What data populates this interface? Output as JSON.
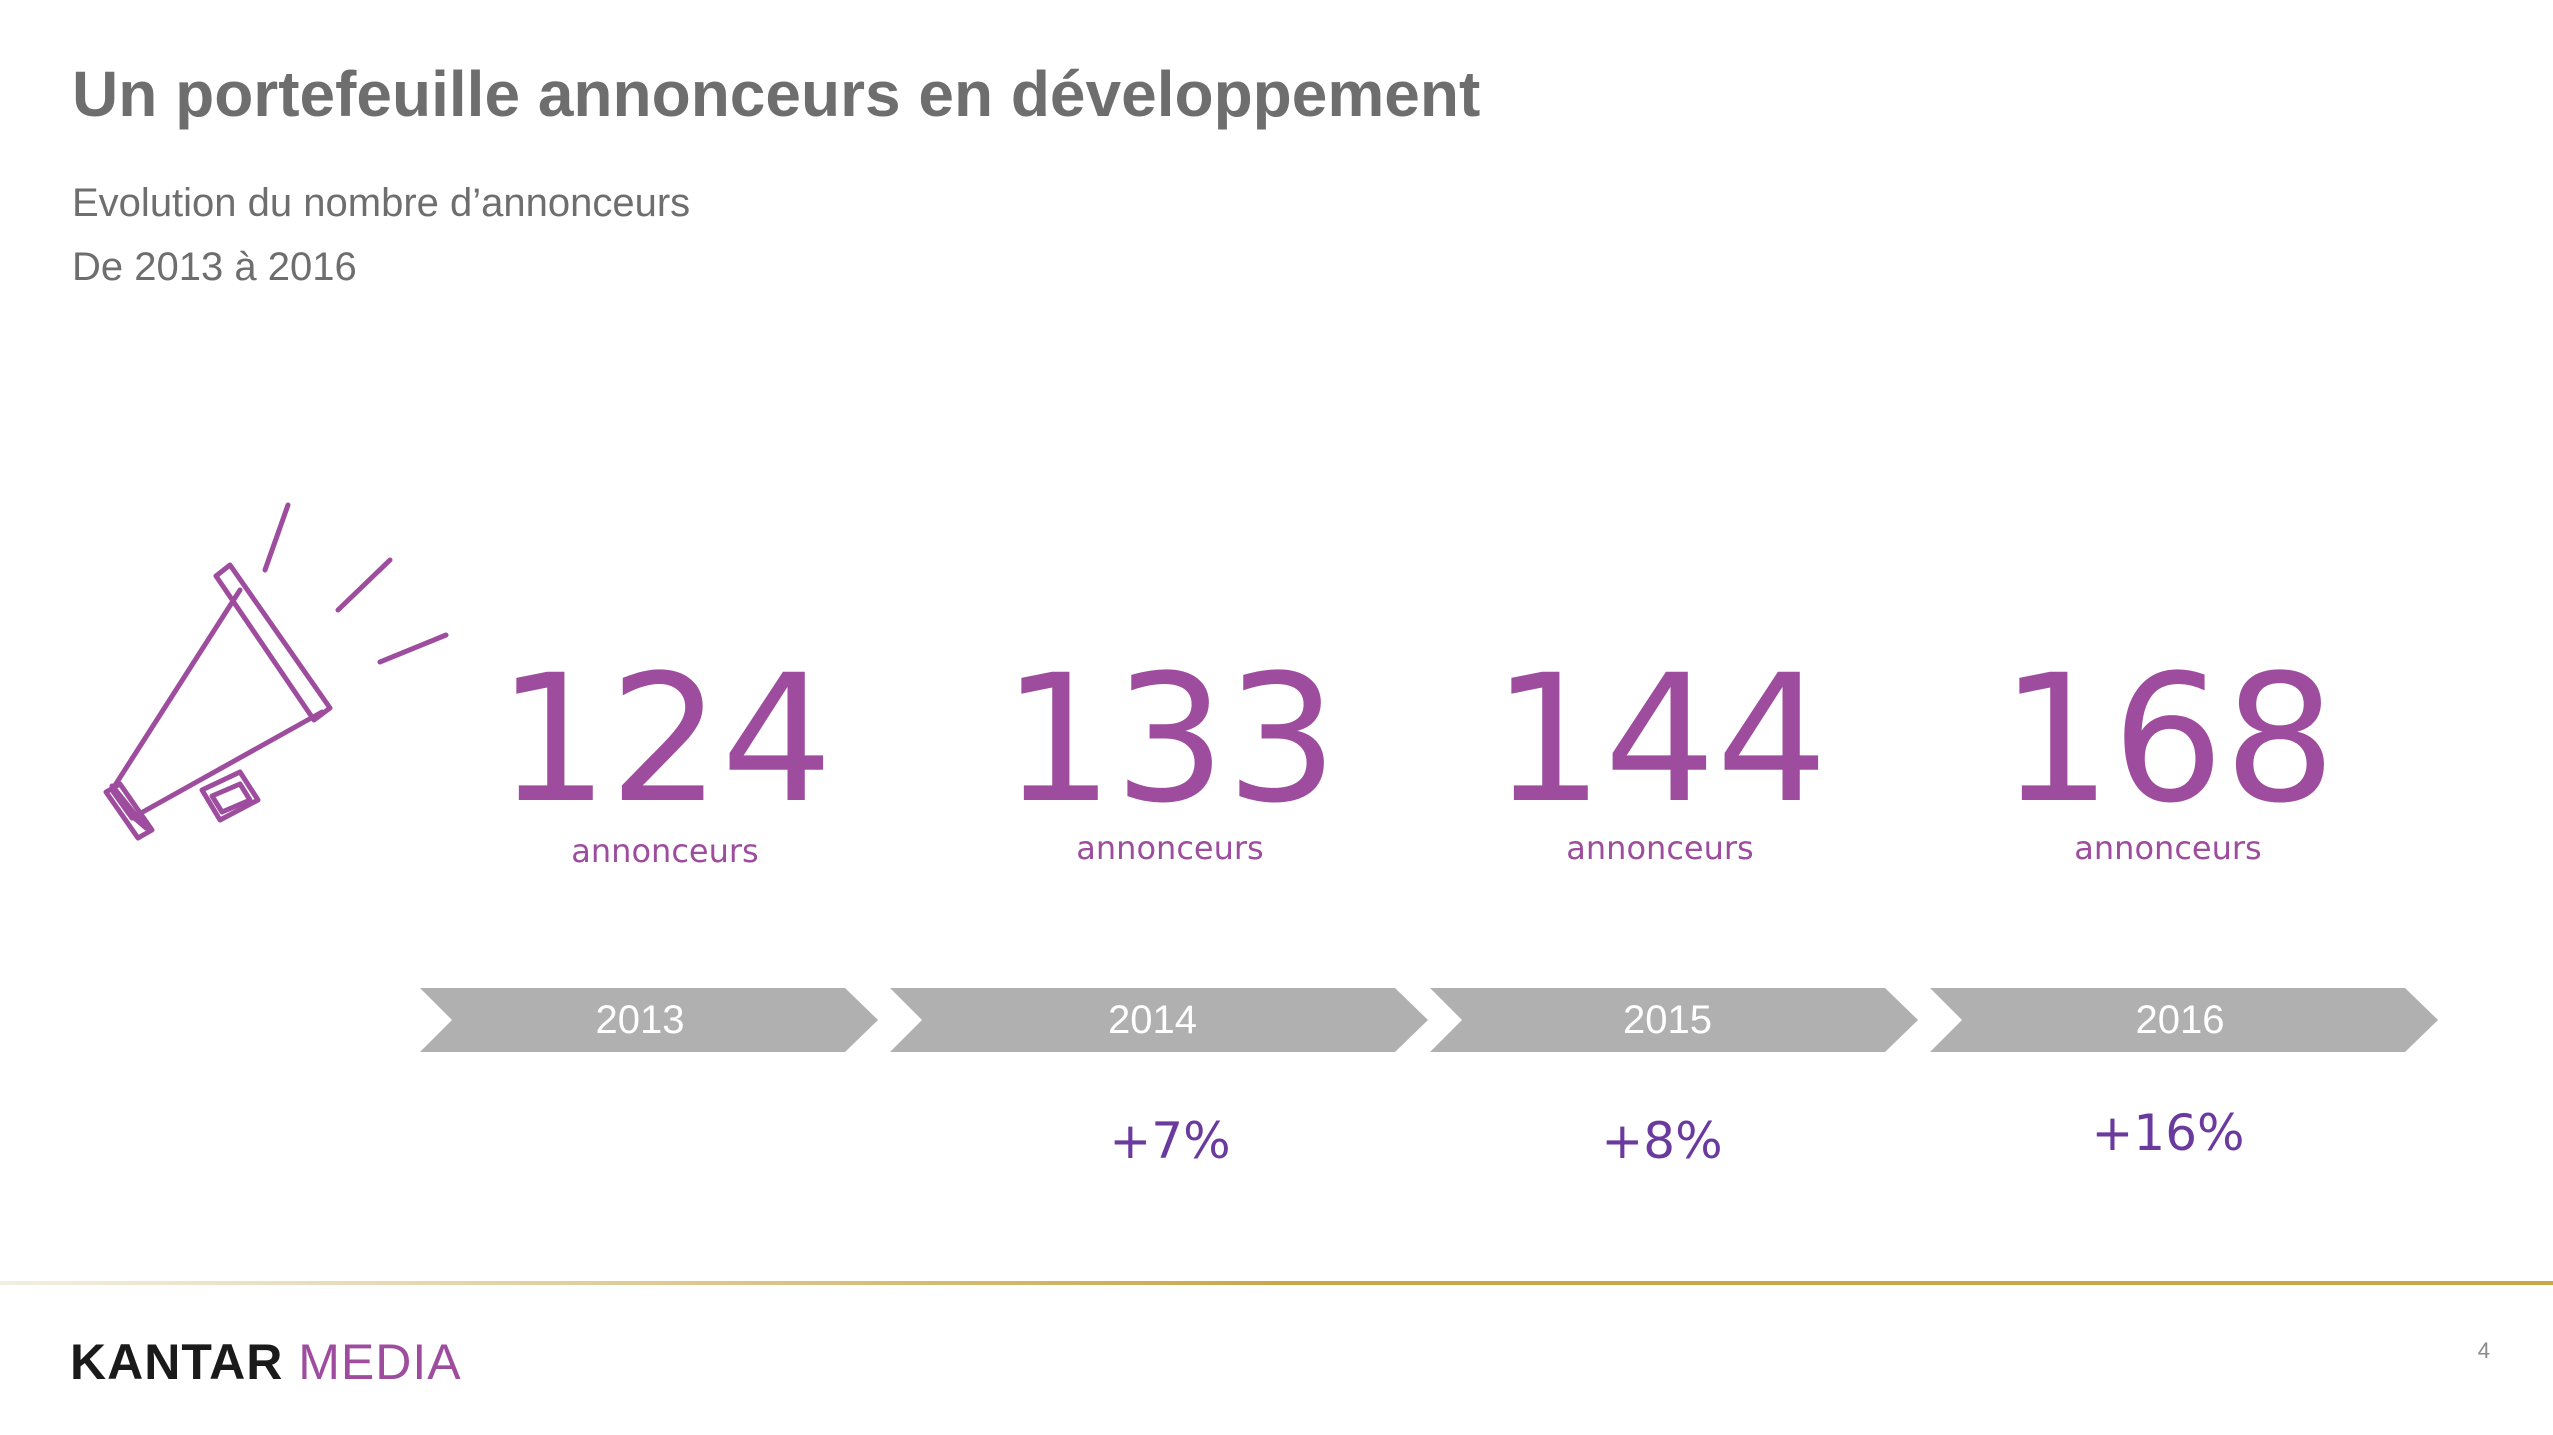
{
  "slide": {
    "title": "Un portefeuille annonceurs en développement",
    "subtitle_line1": "Evolution du nombre d’annonceurs",
    "subtitle_line2": "De 2013 à 2016",
    "page_number": "4"
  },
  "stats": [
    {
      "value": "124",
      "unit": "annonceurs"
    },
    {
      "value": "133",
      "unit": "annonceurs"
    },
    {
      "value": "144",
      "unit": "annonceurs"
    },
    {
      "value": "168",
      "unit": "annonceurs"
    }
  ],
  "timeline": {
    "years": [
      "2013",
      "2014",
      "2015",
      "2016"
    ],
    "growth": [
      "",
      "+7%",
      "+8%",
      "+16%"
    ]
  },
  "footer": {
    "logo_part1": "KANTAR",
    "logo_part2": "MEDIA"
  },
  "icons": {
    "megaphone": "megaphone-icon"
  },
  "colors": {
    "accent_purple": "#9e4d9e",
    "growth_purple": "#6a3a9e",
    "chevron_gray": "#b0b0b0",
    "title_gray": "#6e6e6e",
    "footer_gold": "#c9a84a"
  }
}
